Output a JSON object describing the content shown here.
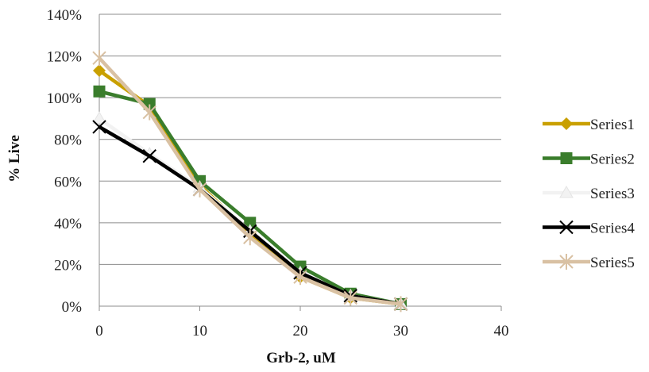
{
  "chart_data": {
    "type": "line",
    "title": "",
    "xlabel": "Grb-2, uM",
    "ylabel": "% Live",
    "xlim": [
      0,
      40
    ],
    "ylim": [
      0,
      1.4
    ],
    "x_ticks": [
      "0",
      "10",
      "20",
      "30",
      "40"
    ],
    "y_ticks": [
      "0%",
      "20%",
      "40%",
      "60%",
      "80%",
      "100%",
      "120%",
      "140%"
    ],
    "grid": "horizontal",
    "legend_position": "right",
    "x": [
      0,
      5,
      10,
      15,
      20,
      25,
      30
    ],
    "series": [
      {
        "name": "Series1",
        "color": "#C9A000",
        "marker": "diamond",
        "values": [
          1.13,
          0.96,
          0.58,
          0.35,
          0.14,
          0.04,
          0.01
        ]
      },
      {
        "name": "Series2",
        "color": "#3A7D2C",
        "marker": "square",
        "values": [
          1.03,
          0.97,
          0.6,
          0.4,
          0.19,
          0.06,
          0.01
        ]
      },
      {
        "name": "Series3",
        "color": "#F2F2F2",
        "marker": "triangle",
        "values": [
          0.9,
          0.73,
          0.57,
          0.36,
          0.16,
          0.05,
          0.01
        ]
      },
      {
        "name": "Series4",
        "color": "#000000",
        "marker": "x",
        "values": [
          0.86,
          0.72,
          0.56,
          0.36,
          0.16,
          0.05,
          0.01
        ]
      },
      {
        "name": "Series5",
        "color": "#D9C1A3",
        "marker": "star",
        "values": [
          1.19,
          0.93,
          0.56,
          0.33,
          0.14,
          0.04,
          0.01
        ]
      }
    ]
  }
}
